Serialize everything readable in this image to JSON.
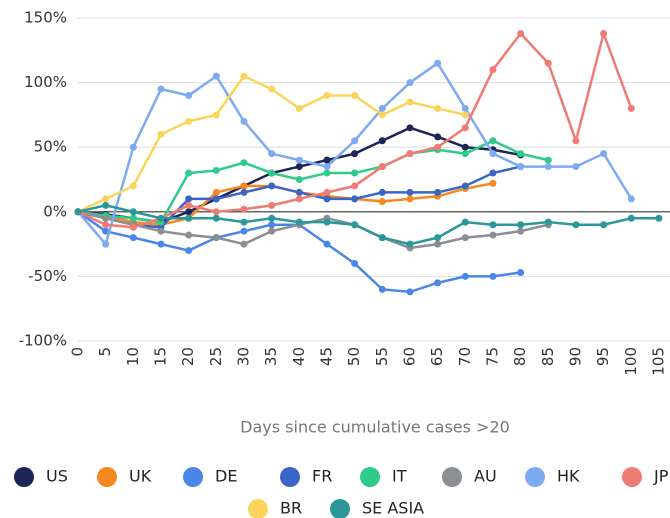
{
  "chart_data": {
    "type": "line",
    "x_label": "Days since cumulative cases >20",
    "x": [
      0,
      5,
      10,
      15,
      20,
      25,
      30,
      35,
      40,
      45,
      50,
      55,
      60,
      65,
      70,
      75,
      80,
      85,
      90,
      95,
      100,
      105
    ],
    "xlim": [
      0,
      107
    ],
    "xticks": [
      0,
      5,
      10,
      15,
      20,
      25,
      30,
      35,
      40,
      45,
      50,
      55,
      60,
      65,
      70,
      75,
      80,
      85,
      90,
      95,
      100,
      105
    ],
    "ylim": [
      -100,
      150
    ],
    "yticks": [
      {
        "value": -100,
        "label": "-100%"
      },
      {
        "value": -50,
        "label": "-50%"
      },
      {
        "value": 0,
        "label": "0%"
      },
      {
        "value": 50,
        "label": "50%"
      },
      {
        "value": 100,
        "label": "100%"
      },
      {
        "value": 150,
        "label": "150%"
      }
    ],
    "grid": true,
    "series": [
      {
        "name": "US",
        "color": "#1c2556",
        "values": [
          0,
          -2,
          -5,
          -8,
          0,
          10,
          20,
          30,
          35,
          40,
          45,
          55,
          65,
          58,
          50,
          48,
          44,
          null,
          null,
          null,
          null,
          null
        ]
      },
      {
        "name": "UK",
        "color": "#f5891f",
        "values": [
          0,
          -3,
          -8,
          -10,
          -5,
          15,
          20,
          20,
          15,
          12,
          10,
          8,
          10,
          12,
          18,
          22,
          null,
          null,
          null,
          null,
          null,
          null
        ]
      },
      {
        "name": "DE",
        "color": "#4a86e8",
        "values": [
          0,
          -15,
          -20,
          -25,
          -30,
          -20,
          -15,
          -10,
          -10,
          -25,
          -40,
          -60,
          -62,
          -55,
          -50,
          -50,
          -47,
          null,
          null,
          null,
          null,
          null
        ]
      },
      {
        "name": "FR",
        "color": "#3a64c8",
        "values": [
          0,
          -5,
          -10,
          -12,
          10,
          10,
          15,
          20,
          15,
          10,
          10,
          15,
          15,
          15,
          20,
          30,
          35,
          null,
          null,
          null,
          null,
          null
        ]
      },
      {
        "name": "IT",
        "color": "#2fcb8b",
        "values": [
          0,
          -3,
          -5,
          -8,
          30,
          32,
          38,
          30,
          25,
          30,
          30,
          35,
          45,
          48,
          45,
          55,
          45,
          40,
          null,
          null,
          null,
          null
        ]
      },
      {
        "name": "AU",
        "color": "#8b8e93",
        "values": [
          0,
          -5,
          -10,
          -15,
          -18,
          -20,
          -25,
          -15,
          -10,
          -5,
          -10,
          -20,
          -28,
          -25,
          -20,
          -18,
          -15,
          -10,
          null,
          null,
          null,
          null
        ]
      },
      {
        "name": "HK",
        "color": "#7eaaf1",
        "values": [
          0,
          -25,
          50,
          95,
          90,
          105,
          70,
          45,
          40,
          35,
          55,
          80,
          100,
          115,
          80,
          45,
          35,
          35,
          35,
          45,
          10,
          null
        ]
      },
      {
        "name": "JP",
        "color": "#ee7b74",
        "values": [
          0,
          -10,
          -12,
          -5,
          5,
          0,
          2,
          5,
          10,
          15,
          20,
          35,
          45,
          50,
          65,
          110,
          138,
          115,
          55,
          138,
          80,
          null
        ]
      },
      {
        "name": "BR",
        "color": "#fbd45c",
        "values": [
          0,
          10,
          20,
          60,
          70,
          75,
          105,
          95,
          80,
          90,
          90,
          75,
          85,
          80,
          75,
          null,
          null,
          null,
          null,
          null,
          null,
          null
        ]
      },
      {
        "name": "SE ASIA",
        "color": "#2b9799",
        "values": [
          0,
          5,
          0,
          -5,
          -5,
          -5,
          -8,
          -5,
          -8,
          -8,
          -10,
          -20,
          -25,
          -20,
          -8,
          -10,
          -10,
          -8,
          -10,
          -10,
          -5,
          -5
        ]
      }
    ]
  }
}
